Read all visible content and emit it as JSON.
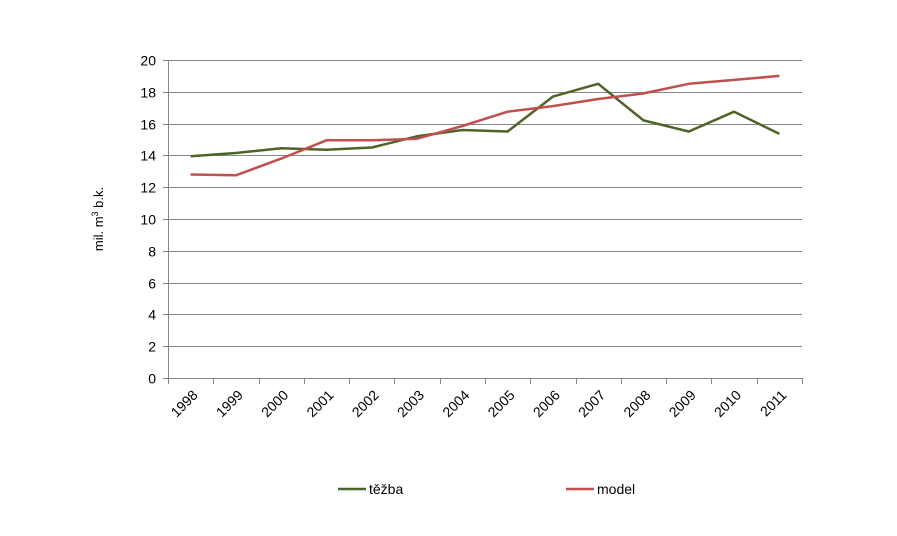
{
  "chart_data": {
    "type": "line",
    "title": "",
    "xlabel": "",
    "ylabel": "mil. m³ b.k.",
    "ylabel_parts": {
      "pre": "mil. m",
      "sup": "3",
      "post": " b.k."
    },
    "ylim": [
      0,
      20
    ],
    "yticks": [
      0,
      2,
      4,
      6,
      8,
      10,
      12,
      14,
      16,
      18,
      20
    ],
    "grid": true,
    "legend_position": "bottom",
    "categories": [
      "1998",
      "1999",
      "2000",
      "2001",
      "2002",
      "2003",
      "2004",
      "2005",
      "2006",
      "2007",
      "2008",
      "2009",
      "2010",
      "2011"
    ],
    "series": [
      {
        "name": "těžba",
        "color": "#4f6228",
        "values": [
          13.95,
          14.15,
          14.45,
          14.35,
          14.5,
          15.2,
          15.6,
          15.5,
          17.7,
          18.5,
          16.2,
          15.5,
          16.75,
          15.35
        ]
      },
      {
        "name": "model",
        "color": "#c0504d",
        "values": [
          12.8,
          12.75,
          13.8,
          14.95,
          14.95,
          15.05,
          15.85,
          16.75,
          17.1,
          17.55,
          17.9,
          18.5,
          18.75,
          19.0
        ]
      }
    ]
  }
}
